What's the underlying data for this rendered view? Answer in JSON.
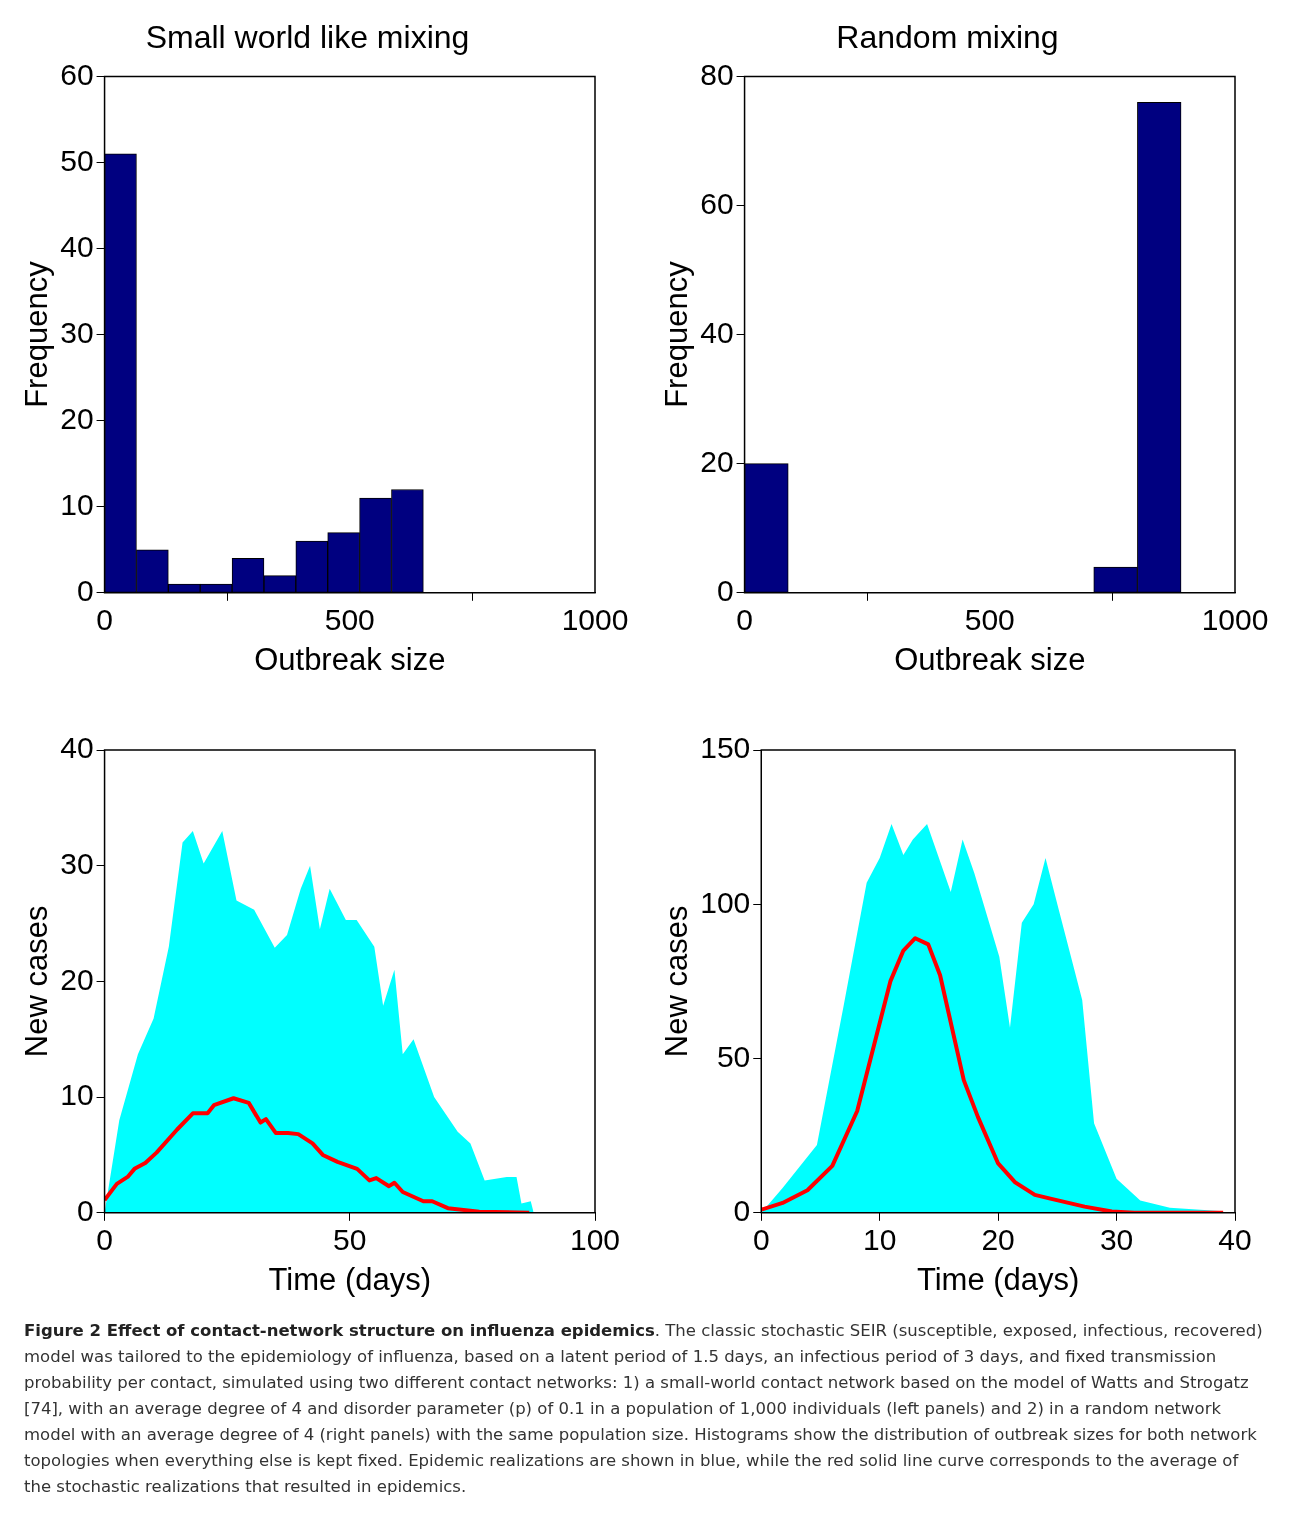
{
  "chart_data": [
    {
      "type": "histogram",
      "title": "Small world like mixing",
      "xlabel": "Outbreak size",
      "ylabel": "Frequency",
      "color": "#000080",
      "bins": [
        0,
        65,
        130,
        195,
        260,
        325,
        390,
        455,
        520,
        585,
        650
      ],
      "values": [
        51,
        5,
        1,
        1,
        4,
        2,
        6,
        7,
        11,
        12
      ],
      "xlim": [
        0,
        1000
      ],
      "xticks": [
        0,
        500,
        1000
      ],
      "ylim": [
        0,
        60
      ],
      "yticks": [
        0,
        10,
        20,
        30,
        40,
        50,
        60
      ]
    },
    {
      "type": "histogram",
      "title": "Random mixing",
      "xlabel": "Outbreak size",
      "ylabel": "Frequency",
      "color": "#000080",
      "bins": [
        0,
        89,
        178,
        267,
        356,
        445,
        534,
        623,
        712,
        801,
        890
      ],
      "values": [
        20,
        0,
        0,
        0,
        0,
        0,
        0,
        0,
        4,
        76
      ],
      "xlim": [
        0,
        1000
      ],
      "xticks": [
        0,
        500,
        1000
      ],
      "ylim": [
        0,
        80
      ],
      "yticks": [
        0,
        20,
        40,
        60,
        80
      ]
    },
    {
      "type": "line",
      "xlabel": "Time (days)",
      "ylabel": "New cases",
      "xlim": [
        0,
        100
      ],
      "xticks": [
        0,
        50,
        100
      ],
      "ylim": [
        0,
        40
      ],
      "yticks": [
        0,
        10,
        20,
        30,
        40
      ],
      "series": [
        {
          "type": "area",
          "color": "#00ffff",
          "x": [
            0,
            3,
            6.8,
            10,
            13.1,
            15.9,
            18,
            20.2,
            24,
            26.9,
            30.5,
            34.7,
            37.2,
            40,
            41.9,
            43.9,
            45.9,
            49.2,
            51.4,
            55,
            56.8,
            59.1,
            60.8,
            63,
            67.2,
            72,
            74.6,
            77.5,
            82,
            84,
            85,
            86.9,
            87.5
          ],
          "values": [
            0,
            8,
            13.7,
            16.8,
            23,
            32,
            33,
            30.2,
            33,
            27,
            26.2,
            22.9,
            24,
            28,
            30,
            24.5,
            28,
            25.3,
            25.3,
            23,
            17.9,
            21,
            13.7,
            15,
            10,
            7,
            6,
            2.8,
            3.1,
            3.1,
            0.8,
            1,
            0
          ]
        },
        {
          "type": "line",
          "color": "#ff0000",
          "x": [
            0,
            2.5,
            4.7,
            6.1,
            8.3,
            10.6,
            14.8,
            18,
            21,
            22.3,
            26.3,
            29.4,
            31.8,
            32.9,
            34.9,
            37.4,
            39.5,
            42.4,
            44.5,
            47.5,
            50.2,
            51.5,
            54,
            55.4,
            58,
            59.1,
            60.8,
            65,
            66.8,
            70,
            76.4,
            86.6
          ],
          "values": [
            1.1,
            2.5,
            3.1,
            3.8,
            4.3,
            5.2,
            7.2,
            8.6,
            8.6,
            9.3,
            9.9,
            9.5,
            7.8,
            8.1,
            6.9,
            6.9,
            6.8,
            6,
            5,
            4.4,
            4,
            3.8,
            2.8,
            3,
            2.3,
            2.6,
            1.8,
            1,
            1,
            0.4,
            0.1,
            0
          ]
        }
      ]
    },
    {
      "type": "line",
      "xlabel": "Time (days)",
      "ylabel": "New cases",
      "xlim": [
        0,
        40
      ],
      "xticks": [
        0,
        10,
        20,
        30,
        40
      ],
      "ylim": [
        0,
        150
      ],
      "yticks": [
        0,
        50,
        100,
        150
      ],
      "annotations": [
        "Figure 2 Effect of contact-network structure on influenza epidemics",
        ". The classic stochastic SEIR (susceptible, exposed, infectious, recovered) model was tailored to the epidemiology of influenza, based on a latent period of 1.5 days, an infectious period of 3 days, and fixed transmission probability per contact, simulated using two different contact networks: 1) a small-world contact network based on the model of Watts and Strogatz [74], with an average degree of 4 and disorder parameter (p) of 0.1 in a population of 1,000 individuals (left panels) and 2) in a random network model with an average degree of 4 (right panels) with the same population size. Histograms show the distribution of outbreak sizes for both network topologies when everything else is kept fixed. Epidemic realizations are shown in blue, while the red solid line curve corresponds to the average of the stochastic realizations that resulted in epidemics."
      ],
      "series": [
        {
          "type": "area",
          "color": "#00ffff",
          "x": [
            0,
            1.8,
            4.7,
            6.9,
            8.9,
            10,
            11,
            12,
            12.8,
            14,
            15,
            16,
            17,
            18,
            20.1,
            21,
            22,
            23,
            24,
            25,
            27.1,
            28.1,
            30,
            32,
            34.5,
            39
          ],
          "values": [
            0,
            8,
            22,
            66,
            107,
            115,
            126,
            116,
            121,
            126,
            115,
            104,
            121,
            110,
            83,
            60,
            94,
            100,
            115,
            100,
            69,
            29,
            11,
            4,
            1.6,
            0.5
          ]
        },
        {
          "type": "line",
          "color": "#ff0000",
          "x": [
            0,
            1.8,
            3.9,
            6,
            8.1,
            10.9,
            12,
            13,
            14.1,
            15.1,
            17.1,
            18.3,
            20,
            21.4,
            23.1,
            24.5,
            27.3,
            29.6,
            31.5,
            39
          ],
          "values": [
            1,
            3.2,
            7.3,
            15.2,
            33,
            75,
            85,
            89,
            87,
            77,
            43,
            31,
            16,
            10,
            5.8,
            4.5,
            2,
            0.4,
            0,
            0
          ]
        }
      ]
    }
  ]
}
